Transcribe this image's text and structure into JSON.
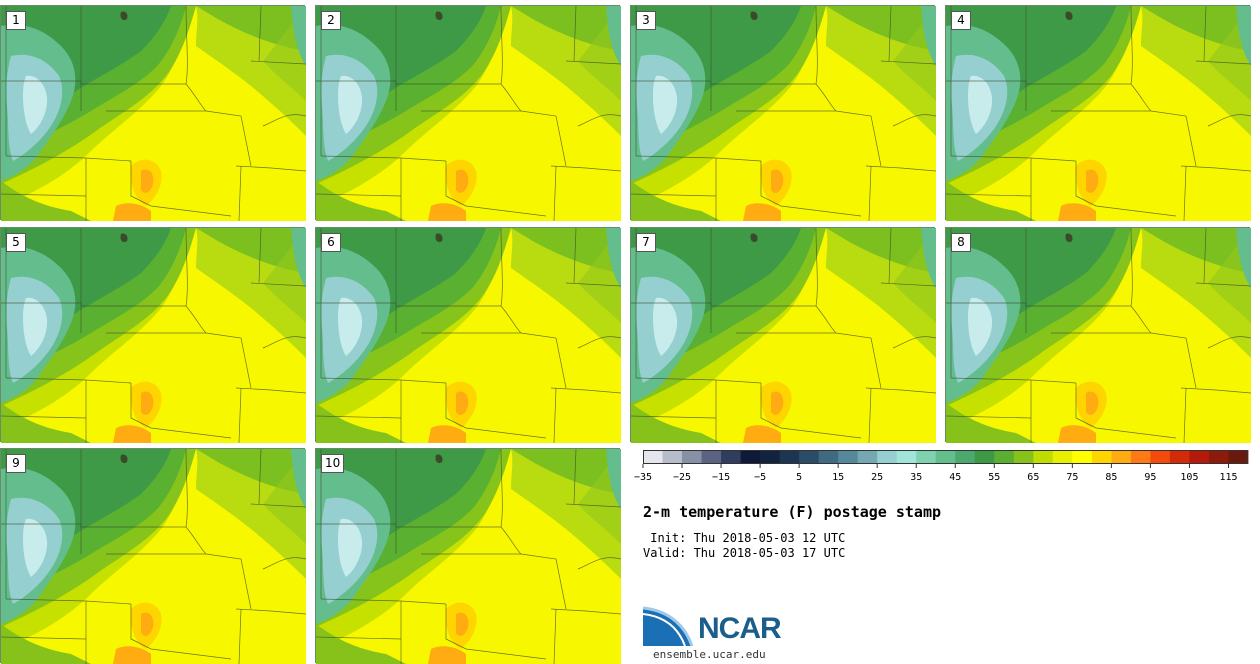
{
  "panels": [
    {
      "label": "1"
    },
    {
      "label": "2"
    },
    {
      "label": "3"
    },
    {
      "label": "4"
    },
    {
      "label": "5"
    },
    {
      "label": "6"
    },
    {
      "label": "7"
    },
    {
      "label": "8"
    },
    {
      "label": "9"
    },
    {
      "label": "10"
    }
  ],
  "colorbar": {
    "colors": [
      "#e4e6ee",
      "#b6bcca",
      "#8890a6",
      "#5a6482",
      "#303d5e",
      "#0e1a38",
      "#13223e",
      "#1c3550",
      "#2b4c66",
      "#3f6a80",
      "#57879a",
      "#75a8b3",
      "#95cfcf",
      "#9fe6d8",
      "#7ed2b0",
      "#63bd8c",
      "#4ca86c",
      "#3c9a45",
      "#5aae30",
      "#86c21a",
      "#bfdd00",
      "#e8f000",
      "#ffff00",
      "#ffd500",
      "#ffac12",
      "#ff7a14",
      "#f24b0c",
      "#d32a0a",
      "#b31a0c",
      "#8e1a0e",
      "#6a1a0c"
    ],
    "tick_labels": [
      "−35",
      "−25",
      "−15",
      "−5",
      "5",
      "15",
      "25",
      "35",
      "45",
      "55",
      "65",
      "75",
      "85",
      "95",
      "105",
      "115"
    ]
  },
  "title": "2-m temperature (F) postage stamp",
  "init_text": " Init: Thu 2018-05-03 12 UTC",
  "valid_text": "Valid: Thu 2018-05-03 17 UTC",
  "logo_text": "NCAR",
  "site_text": "ensemble.ucar.edu"
}
